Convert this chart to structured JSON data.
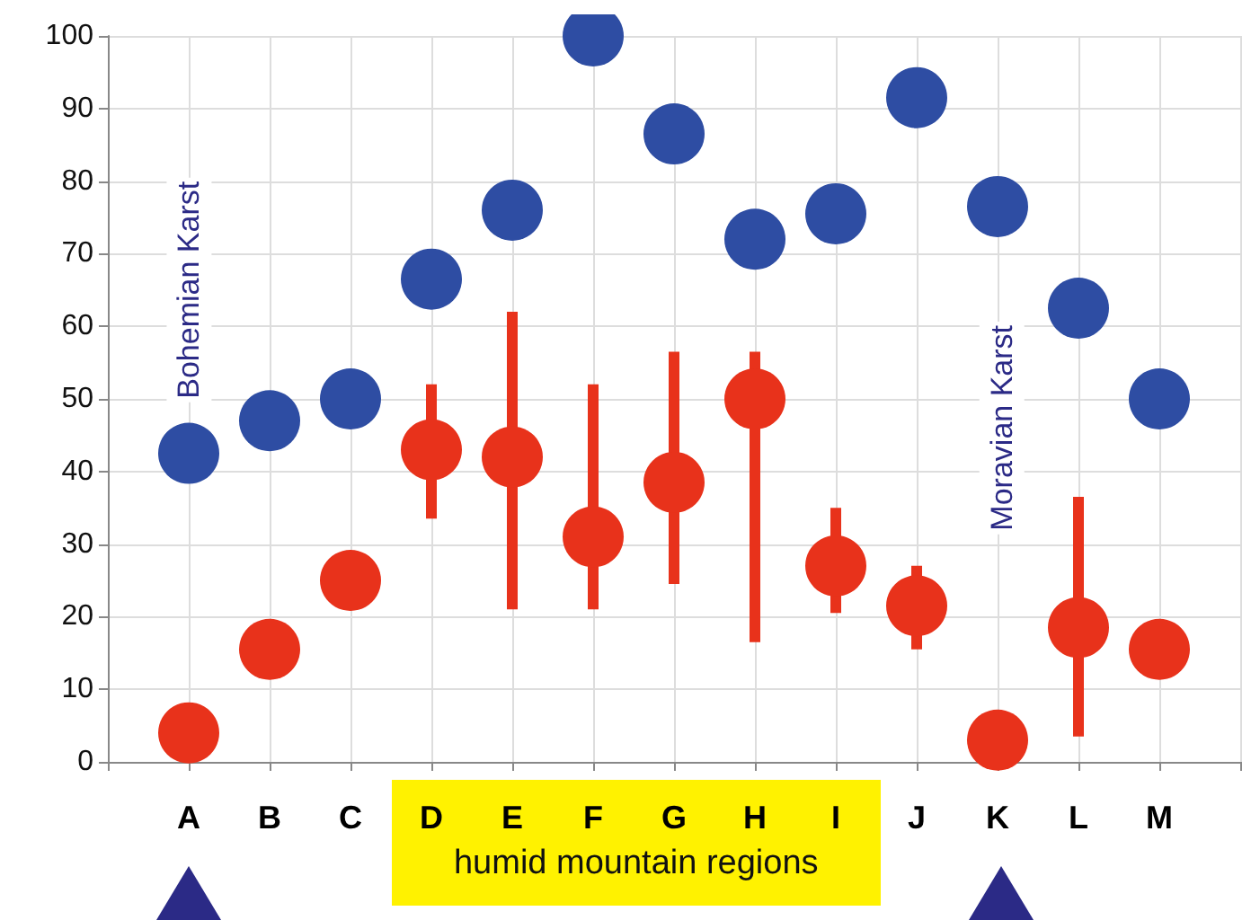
{
  "chart_data": {
    "type": "scatter",
    "categories": [
      null,
      "A",
      "B",
      "C",
      "D",
      "E",
      "F",
      "G",
      "H",
      "I",
      "J",
      "K",
      "L",
      "M",
      null
    ],
    "series": [
      {
        "color": "#2e4da3",
        "values": [
          null,
          42.5,
          47,
          50,
          66.5,
          76,
          100,
          86.5,
          72,
          75.5,
          91.5,
          76.5,
          62.5,
          50,
          null
        ]
      },
      {
        "color": "#e8321b",
        "values": [
          null,
          4,
          15.5,
          25,
          43,
          42,
          31,
          38.5,
          50,
          27,
          21.5,
          3,
          18.5,
          15.5,
          null
        ],
        "errors": [
          null,
          null,
          null,
          null,
          [
            33.5,
            52
          ],
          [
            21,
            62
          ],
          [
            21,
            52
          ],
          [
            24.5,
            56.5
          ],
          [
            16.5,
            56.5
          ],
          [
            20.5,
            35
          ],
          [
            15.5,
            27
          ],
          null,
          [
            3.5,
            36.5
          ],
          null,
          null
        ]
      }
    ],
    "ylim": [
      0,
      100
    ],
    "yticks": [
      0,
      10,
      20,
      30,
      40,
      50,
      60,
      70,
      80,
      90,
      100
    ],
    "grid": true,
    "marker": "circle",
    "annotations": [
      "Bohemian Karst",
      "Moravian Karst",
      "humid mountain regions"
    ]
  }
}
